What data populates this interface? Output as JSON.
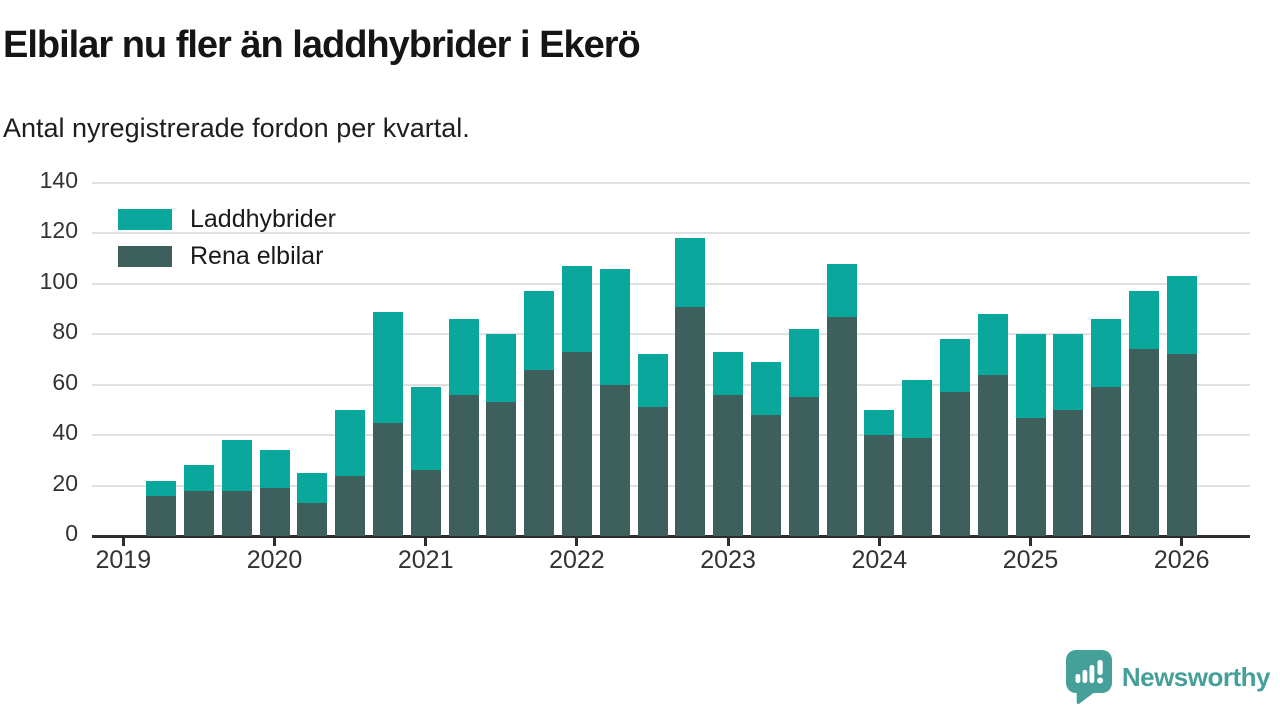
{
  "header": {
    "title": "Elbilar nu fler än laddhybrider i Ekerö",
    "subtitle": "Antal nyregistrerade fordon per kvartal."
  },
  "legend": {
    "items": [
      {
        "label": "Laddhybrider",
        "color": "#09a79c"
      },
      {
        "label": "Rena elbilar",
        "color": "#3e605c"
      }
    ]
  },
  "chart_data": {
    "type": "bar",
    "stacked": true,
    "title": "Elbilar nu fler än laddhybrider i Ekerö",
    "subtitle": "Antal nyregistrerade fordon per kvartal.",
    "x": [
      "2019 Q2",
      "2019 Q3",
      "2019 Q4",
      "2020 Q1",
      "2020 Q2",
      "2020 Q3",
      "2020 Q4",
      "2021 Q1",
      "2021 Q2",
      "2021 Q3",
      "2021 Q4",
      "2022 Q1",
      "2022 Q2",
      "2022 Q3",
      "2022 Q4",
      "2023 Q1",
      "2023 Q2",
      "2023 Q3",
      "2023 Q4",
      "2024 Q1",
      "2024 Q2",
      "2024 Q3",
      "2024 Q4",
      "2025 Q1",
      "2025 Q2",
      "2025 Q3",
      "2025 Q4",
      "2026 Q1"
    ],
    "series": [
      {
        "name": "Rena elbilar",
        "color": "#3e605c",
        "values": [
          16,
          18,
          18,
          19,
          13,
          24,
          45,
          26,
          56,
          53,
          66,
          73,
          60,
          51,
          91,
          56,
          48,
          55,
          87,
          40,
          39,
          57,
          64,
          47,
          50,
          59,
          74,
          72
        ]
      },
      {
        "name": "Laddhybrider",
        "color": "#09a79c",
        "values": [
          6,
          10,
          20,
          15,
          12,
          26,
          44,
          33,
          30,
          27,
          31,
          34,
          46,
          21,
          27,
          17,
          21,
          27,
          21,
          10,
          23,
          21,
          24,
          33,
          30,
          27,
          23,
          31
        ]
      }
    ],
    "totals": [
      22,
      28,
      38,
      34,
      25,
      50,
      89,
      59,
      86,
      80,
      97,
      107,
      106,
      72,
      118,
      73,
      69,
      82,
      108,
      50,
      62,
      78,
      88,
      80,
      80,
      86,
      97,
      103
    ],
    "ylim": [
      0,
      140
    ],
    "yticks": [
      0,
      20,
      40,
      60,
      80,
      100,
      120,
      140
    ],
    "year_labels": [
      "2019",
      "2020",
      "2021",
      "2022",
      "2023",
      "2024",
      "2025",
      "2026"
    ],
    "grid": "horizontal",
    "legend_position": "top-left",
    "xlabel": "",
    "ylabel": ""
  },
  "footer": {
    "brand": "Newsworthy"
  },
  "colors": {
    "laddhybrider": "#09a79c",
    "rena_elbilar": "#3e605c",
    "brand_teal": "#46a09a",
    "axis_text": "#333333",
    "gridline": "#e1e1e1",
    "axis_line": "#2d2d2d"
  }
}
